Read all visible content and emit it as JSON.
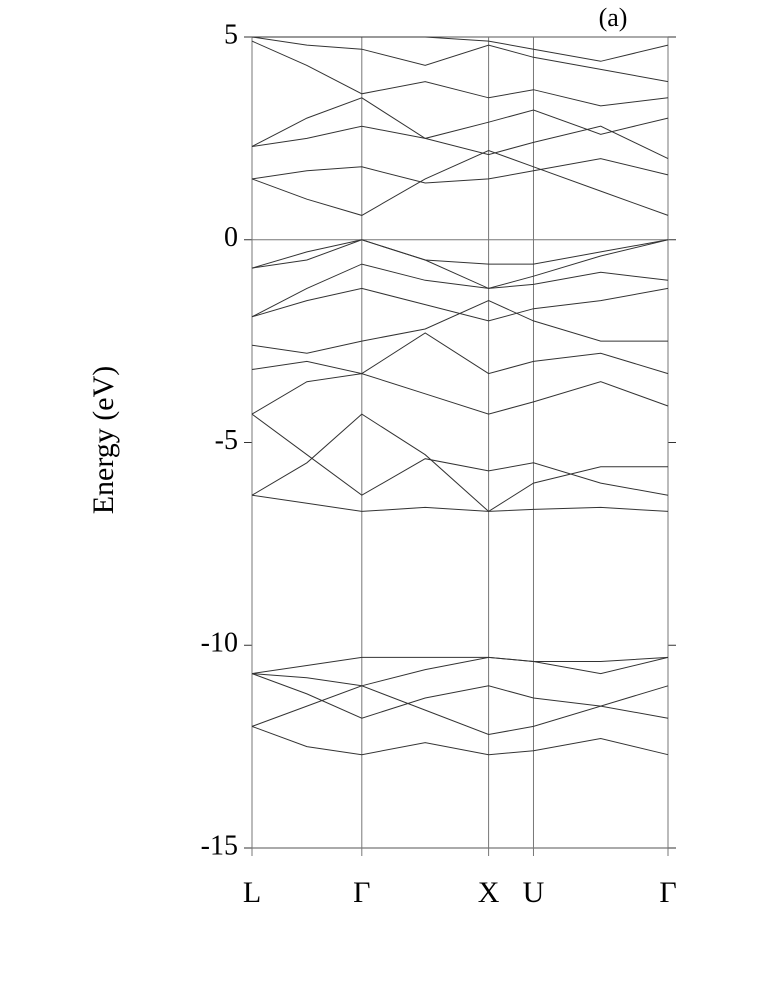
{
  "chart_data": {
    "type": "line",
    "title": "(a)",
    "y_label": "Energy (eV)",
    "x": [
      0,
      0.433,
      0.866,
      1.366,
      1.866,
      2.22,
      2.75,
      3.281
    ],
    "xlim": [
      0,
      3.281
    ],
    "xticks": [
      {
        "value": 0,
        "label": "L"
      },
      {
        "value": 0.866,
        "label": "Γ"
      },
      {
        "value": 1.866,
        "label": "X"
      },
      {
        "value": 2.22,
        "label": "U"
      },
      {
        "value": 3.281,
        "label": "Γ"
      }
    ],
    "ylim": [
      -15,
      5
    ],
    "yticks": [
      -15,
      -10,
      -5,
      0,
      5
    ],
    "zero_line": true,
    "line_color": "#333",
    "series": [
      {
        "values": [
          -12.0,
          -12.5,
          -12.7,
          -12.4,
          -12.7,
          -12.6,
          -12.3,
          -12.7
        ]
      },
      {
        "values": [
          -12.0,
          -11.5,
          -11.0,
          -11.6,
          -12.2,
          -12.0,
          -11.5,
          -11.8
        ]
      },
      {
        "values": [
          -10.7,
          -11.2,
          -11.8,
          -11.3,
          -11.0,
          -11.3,
          -11.5,
          -11.0
        ]
      },
      {
        "values": [
          -10.7,
          -10.8,
          -11.0,
          -10.6,
          -10.3,
          -10.4,
          -10.7,
          -10.3
        ]
      },
      {
        "values": [
          -10.7,
          -10.5,
          -10.3,
          -10.3,
          -10.3,
          -10.4,
          -10.4,
          -10.3
        ]
      },
      {
        "values": [
          -6.3,
          -6.5,
          -6.7,
          -6.6,
          -6.7,
          -6.65,
          -6.6,
          -6.7
        ]
      },
      {
        "values": [
          -6.3,
          -5.5,
          -4.3,
          -5.3,
          -6.7,
          -6.0,
          -5.6,
          -5.6
        ]
      },
      {
        "values": [
          -4.3,
          -5.3,
          -6.3,
          -5.4,
          -5.7,
          -5.5,
          -6.0,
          -6.3
        ]
      },
      {
        "values": [
          -4.3,
          -3.5,
          -3.3,
          -3.8,
          -4.3,
          -4.0,
          -3.5,
          -4.1
        ]
      },
      {
        "values": [
          -3.2,
          -3.0,
          -3.3,
          -2.3,
          -3.3,
          -3.0,
          -2.8,
          -3.3
        ]
      },
      {
        "values": [
          -2.6,
          -2.8,
          -2.5,
          -2.2,
          -1.5,
          -2.0,
          -2.5,
          -2.5
        ]
      },
      {
        "values": [
          -1.9,
          -1.5,
          -1.2,
          -1.6,
          -2.0,
          -1.7,
          -1.5,
          -1.2
        ]
      },
      {
        "values": [
          -1.9,
          -1.2,
          -0.6,
          -1.0,
          -1.2,
          -1.1,
          -0.8,
          -1.0
        ]
      },
      {
        "values": [
          -0.7,
          -0.3,
          0,
          -0.5,
          -1.2,
          -0.9,
          -0.4,
          0
        ]
      },
      {
        "values": [
          -0.7,
          -0.5,
          0,
          -0.5,
          -0.6,
          -0.6,
          -0.3,
          0
        ]
      },
      {
        "values": [
          1.5,
          1.0,
          0.6,
          1.5,
          2.2,
          1.8,
          1.2,
          0.6
        ]
      },
      {
        "values": [
          1.5,
          1.7,
          1.8,
          1.4,
          1.5,
          1.7,
          2.0,
          1.6
        ]
      },
      {
        "values": [
          2.3,
          2.5,
          2.8,
          2.5,
          2.1,
          2.4,
          2.8,
          2.0
        ]
      },
      {
        "values": [
          2.3,
          3.0,
          3.5,
          2.5,
          2.9,
          3.2,
          2.6,
          3.0
        ]
      },
      {
        "values": [
          4.9,
          4.3,
          3.6,
          3.9,
          3.5,
          3.7,
          3.3,
          3.5
        ]
      },
      {
        "values": [
          5.0,
          4.8,
          4.7,
          4.3,
          4.8,
          4.5,
          4.2,
          3.9
        ]
      },
      {
        "values": [
          5.0,
          5.0,
          5.0,
          5.0,
          4.9,
          4.7,
          4.4,
          4.8
        ]
      }
    ]
  }
}
